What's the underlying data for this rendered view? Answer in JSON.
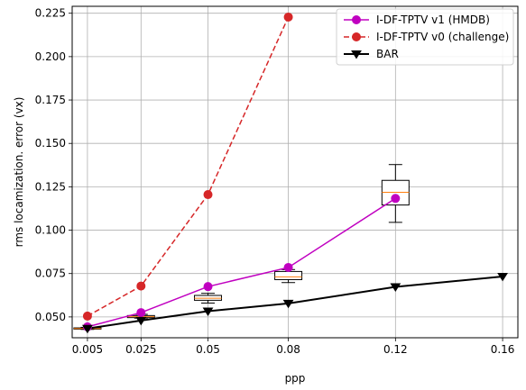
{
  "chart_data": {
    "type": "line",
    "xlabel": "ppp",
    "ylabel": "rms locamization. error (vx)",
    "x_ticks": [
      {
        "value": 0.005,
        "label": "0.005"
      },
      {
        "value": 0.025,
        "label": "0.025"
      },
      {
        "value": 0.05,
        "label": "0.05"
      },
      {
        "value": 0.08,
        "label": "0.08"
      },
      {
        "value": 0.12,
        "label": "0.12"
      },
      {
        "value": 0.16,
        "label": "0.16"
      }
    ],
    "y_ticks": [
      {
        "value": 0.05,
        "label": "0.050"
      },
      {
        "value": 0.075,
        "label": "0.075"
      },
      {
        "value": 0.1,
        "label": "0.100"
      },
      {
        "value": 0.125,
        "label": "0.125"
      },
      {
        "value": 0.15,
        "label": "0.150"
      },
      {
        "value": 0.175,
        "label": "0.175"
      },
      {
        "value": 0.2,
        "label": "0.200"
      },
      {
        "value": 0.225,
        "label": "0.225"
      }
    ],
    "xlim": [
      -0.0007,
      0.1657
    ],
    "ylim": [
      0.038,
      0.229
    ],
    "grid": true,
    "legend_position": "top-right",
    "series": [
      {
        "name": "I-DF-TPTV v1 (HMDB)",
        "color": "#c000c0",
        "line_style": "solid",
        "marker": "circle",
        "x": [
          0.005,
          0.025,
          0.05,
          0.08,
          0.12
        ],
        "y": [
          0.0443,
          0.0525,
          0.0675,
          0.0785,
          0.1183
        ]
      },
      {
        "name": "I-DF-TPTV v0 (challenge)",
        "color": "#d62728",
        "line_style": "dashed",
        "marker": "circle",
        "x": [
          0.005,
          0.025,
          0.05,
          0.08
        ],
        "y": [
          0.0505,
          0.0678,
          0.1205,
          0.2228
        ]
      },
      {
        "name": "BAR",
        "color": "#000000",
        "line_style": "solid",
        "marker": "triangle-down",
        "x": [
          0.005,
          0.025,
          0.05,
          0.08,
          0.12,
          0.16
        ],
        "y": [
          0.0433,
          0.0479,
          0.0533,
          0.0578,
          0.0673,
          0.0733
        ]
      }
    ],
    "boxplots": [
      {
        "x": 0.005,
        "whisker_low": 0.0428,
        "q1": 0.043,
        "median": 0.0433,
        "q3": 0.0437,
        "whisker_high": 0.044
      },
      {
        "x": 0.025,
        "whisker_low": 0.0493,
        "q1": 0.0496,
        "median": 0.0501,
        "q3": 0.0508,
        "whisker_high": 0.0515
      },
      {
        "x": 0.05,
        "whisker_low": 0.058,
        "q1": 0.0596,
        "median": 0.0608,
        "q3": 0.0624,
        "whisker_high": 0.0636
      },
      {
        "x": 0.08,
        "whisker_low": 0.0698,
        "q1": 0.0715,
        "median": 0.0731,
        "q3": 0.0762,
        "whisker_high": 0.0773
      },
      {
        "x": 0.12,
        "whisker_low": 0.1045,
        "q1": 0.1145,
        "median": 0.1218,
        "q3": 0.1287,
        "whisker_high": 0.1378
      }
    ],
    "box_colors": {
      "median": "#ff7f0e",
      "fill": "#ffffff",
      "edge": "#000000"
    }
  }
}
